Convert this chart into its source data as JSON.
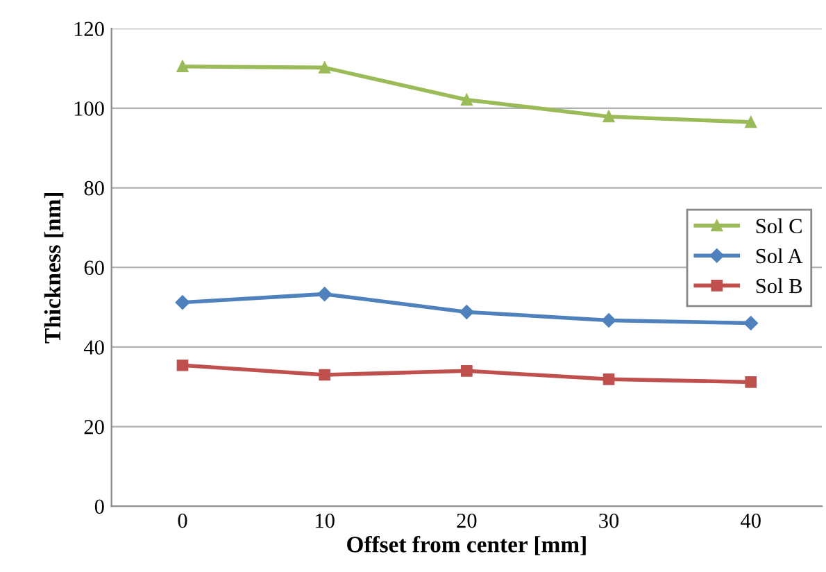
{
  "chart_data": {
    "type": "line",
    "xlabel": "Offset from center [mm]",
    "ylabel": "Thickness [nm]",
    "x": [
      0,
      10,
      20,
      30,
      40
    ],
    "series": [
      {
        "name": "Sol C",
        "color": "#9bbb59",
        "marker": "triangle",
        "values": [
          110.5,
          110.2,
          102.1,
          97.9,
          96.5
        ]
      },
      {
        "name": "Sol A",
        "color": "#4f81bd",
        "marker": "diamond",
        "values": [
          51.2,
          53.3,
          48.8,
          46.7,
          46.0
        ]
      },
      {
        "name": "Sol B",
        "color": "#c0504d",
        "marker": "square",
        "values": [
          35.4,
          33.0,
          34.0,
          31.9,
          31.2
        ]
      }
    ],
    "xlim": [
      -5,
      45
    ],
    "xticks": [
      0,
      10,
      20,
      30,
      40
    ],
    "ylim": [
      0,
      120
    ],
    "yticks": [
      0,
      20,
      40,
      60,
      80,
      100,
      120
    ],
    "grid": "y",
    "legend": "right",
    "line_style": "solid"
  }
}
